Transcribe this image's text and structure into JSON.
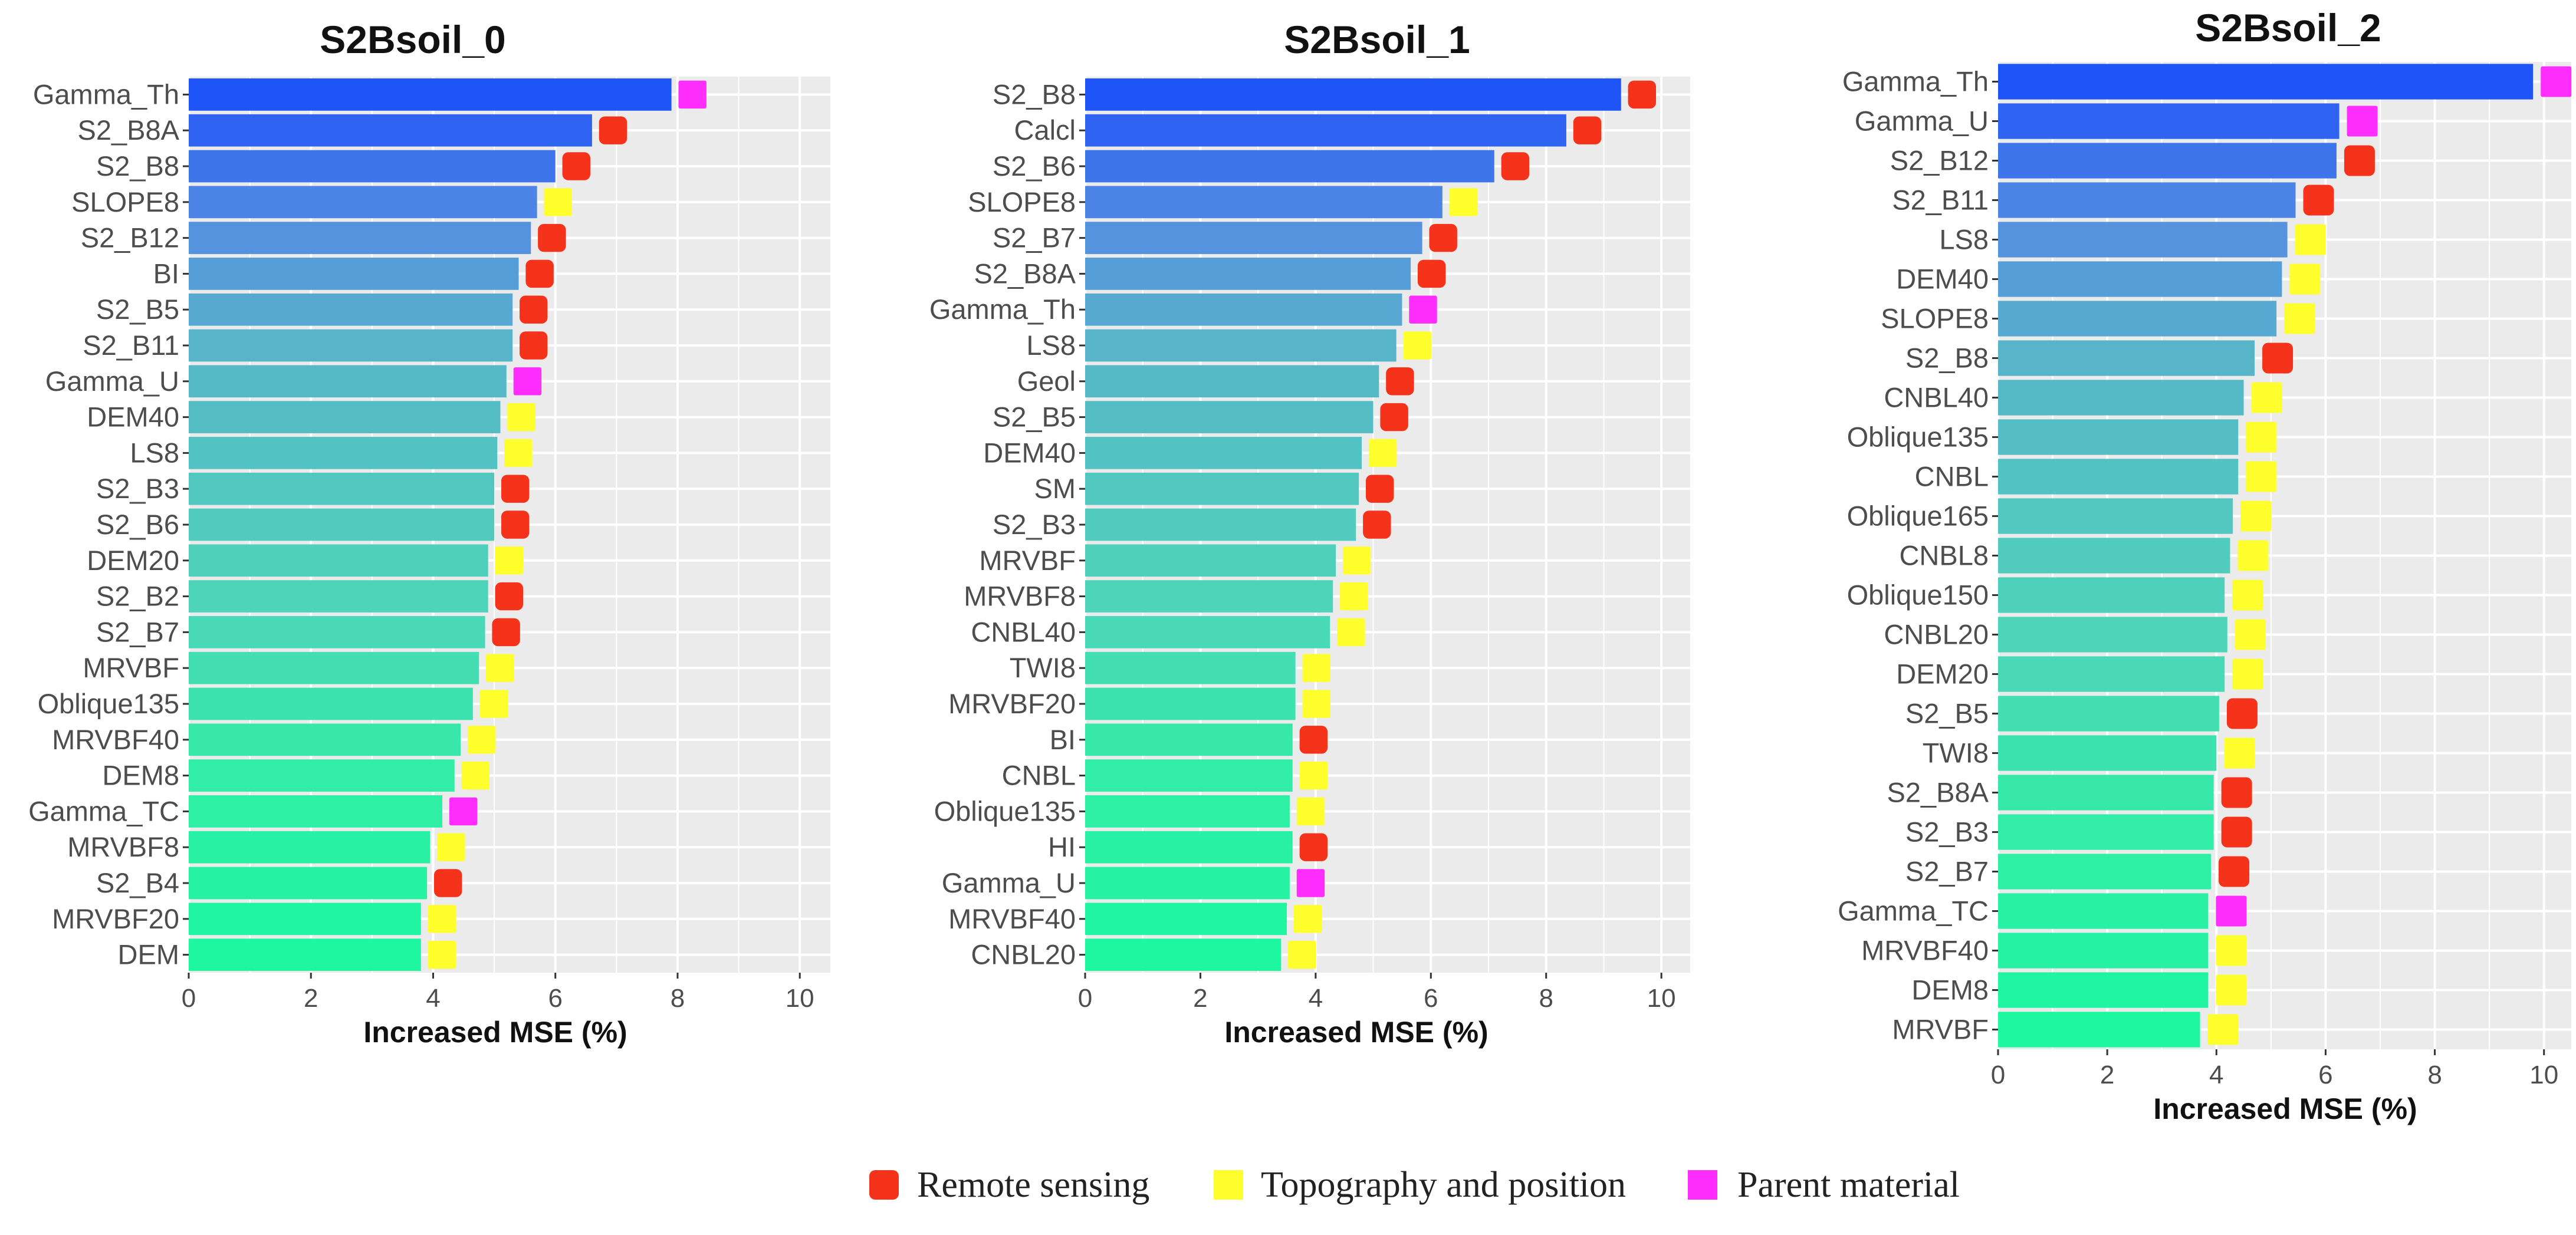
{
  "categories_map": {
    "rs": "Remote sensing",
    "topo": "Topography and position",
    "parent": "Parent material"
  },
  "colors": {
    "rs": "#f5321a",
    "topo": "#ffff2e",
    "parent": "#ff2eff",
    "panel": "#ebebeb",
    "grid": "#ffffff"
  },
  "legend": [
    {
      "key": "rs",
      "label": "Remote sensing"
    },
    {
      "key": "topo",
      "label": "Topography and position"
    },
    {
      "key": "parent",
      "label": "Parent material"
    }
  ],
  "chart_data": [
    {
      "type": "bar",
      "orientation": "horizontal",
      "title": "S2Bsoil_0",
      "xlabel": "Increased MSE (%)",
      "ylabel": "",
      "xlim": [
        0,
        10.5
      ],
      "xticks": [
        0,
        2,
        4,
        6,
        8,
        10
      ],
      "grid": true,
      "categories": [
        "Gamma_Th",
        "S2_B8A",
        "S2_B8",
        "SLOPE8",
        "S2_B12",
        "BI",
        "S2_B5",
        "S2_B11",
        "Gamma_U",
        "DEM40",
        "LS8",
        "S2_B3",
        "S2_B6",
        "DEM20",
        "S2_B2",
        "S2_B7",
        "MRVBF",
        "Oblique135",
        "MRVBF40",
        "DEM8",
        "Gamma_TC",
        "MRVBF8",
        "S2_B4",
        "MRVBF20",
        "DEM"
      ],
      "values": [
        7.9,
        6.6,
        6.0,
        5.7,
        5.6,
        5.4,
        5.3,
        5.3,
        5.2,
        5.1,
        5.05,
        5.0,
        5.0,
        4.9,
        4.9,
        4.85,
        4.75,
        4.65,
        4.45,
        4.35,
        4.15,
        3.95,
        3.9,
        3.8,
        3.8
      ],
      "markers": [
        "parent",
        "rs",
        "rs",
        "topo",
        "rs",
        "rs",
        "rs",
        "rs",
        "parent",
        "topo",
        "topo",
        "rs",
        "rs",
        "topo",
        "rs",
        "rs",
        "topo",
        "topo",
        "topo",
        "topo",
        "parent",
        "topo",
        "rs",
        "topo",
        "topo"
      ]
    },
    {
      "type": "bar",
      "orientation": "horizontal",
      "title": "S2Bsoil_1",
      "xlabel": "Increased MSE (%)",
      "ylabel": "",
      "xlim": [
        0,
        10.5
      ],
      "xticks": [
        0,
        2,
        4,
        6,
        8,
        10
      ],
      "grid": true,
      "categories": [
        "S2_B8",
        "Calcl",
        "S2_B6",
        "SLOPE8",
        "S2_B7",
        "S2_B8A",
        "Gamma_Th",
        "LS8",
        "Geol",
        "S2_B5",
        "DEM40",
        "SM",
        "S2_B3",
        "MRVBF",
        "MRVBF8",
        "CNBL40",
        "TWI8",
        "MRVBF20",
        "BI",
        "CNBL",
        "Oblique135",
        "HI",
        "Gamma_U",
        "MRVBF40",
        "CNBL20"
      ],
      "values": [
        9.3,
        8.35,
        7.1,
        6.2,
        5.85,
        5.65,
        5.5,
        5.4,
        5.1,
        5.0,
        4.8,
        4.75,
        4.7,
        4.35,
        4.3,
        4.25,
        3.65,
        3.65,
        3.6,
        3.6,
        3.55,
        3.6,
        3.55,
        3.5,
        3.4
      ],
      "markers": [
        "rs",
        "rs",
        "rs",
        "topo",
        "rs",
        "rs",
        "parent",
        "topo",
        "rs",
        "rs",
        "topo",
        "rs",
        "rs",
        "topo",
        "topo",
        "topo",
        "topo",
        "topo",
        "rs",
        "topo",
        "topo",
        "rs",
        "parent",
        "topo",
        "topo"
      ]
    },
    {
      "type": "bar",
      "orientation": "horizontal",
      "title": "S2Bsoil_2",
      "xlabel": "Increased MSE (%)",
      "ylabel": "",
      "xlim": [
        0,
        10.5
      ],
      "xticks": [
        0,
        2,
        4,
        6,
        8,
        10
      ],
      "grid": true,
      "categories": [
        "Gamma_Th",
        "Gamma_U",
        "S2_B12",
        "S2_B11",
        "LS8",
        "DEM40",
        "SLOPE8",
        "S2_B8",
        "CNBL40",
        "Oblique135",
        "CNBL",
        "Oblique165",
        "CNBL8",
        "Oblique150",
        "CNBL20",
        "DEM20",
        "S2_B5",
        "TWI8",
        "S2_B8A",
        "S2_B3",
        "S2_B7",
        "Gamma_TC",
        "MRVBF40",
        "DEM8",
        "MRVBF"
      ],
      "values": [
        9.8,
        6.25,
        6.2,
        5.45,
        5.3,
        5.2,
        5.1,
        4.7,
        4.5,
        4.4,
        4.4,
        4.3,
        4.25,
        4.15,
        4.2,
        4.15,
        4.05,
        4.0,
        3.95,
        3.95,
        3.9,
        3.85,
        3.85,
        3.85,
        3.7
      ],
      "markers": [
        "parent",
        "parent",
        "rs",
        "rs",
        "topo",
        "topo",
        "topo",
        "rs",
        "topo",
        "topo",
        "topo",
        "topo",
        "topo",
        "topo",
        "topo",
        "topo",
        "rs",
        "topo",
        "rs",
        "rs",
        "rs",
        "parent",
        "topo",
        "topo",
        "topo"
      ]
    }
  ]
}
